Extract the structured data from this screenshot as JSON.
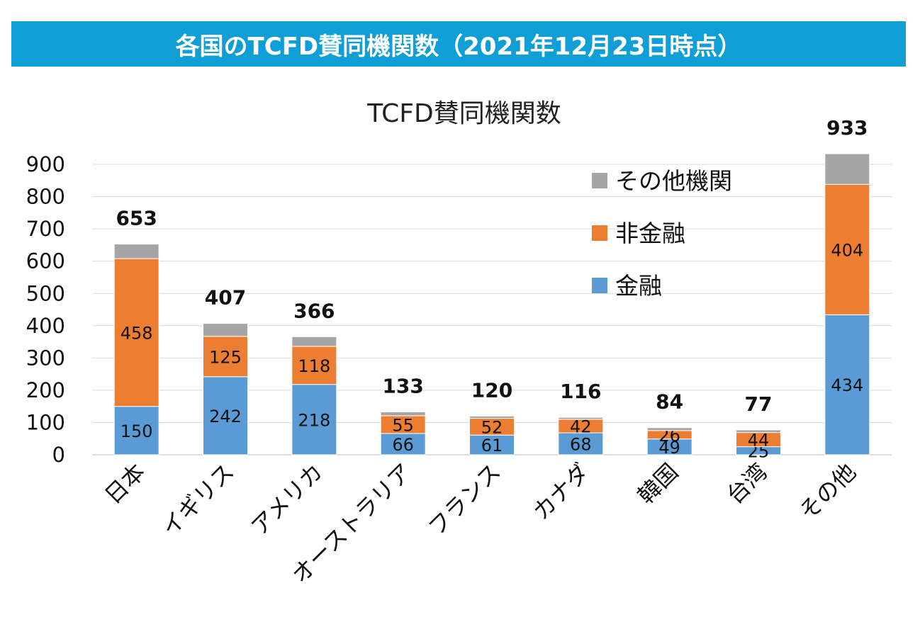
{
  "banner": {
    "title": "各国のTCFD賛同機関数（2021年12月23日時点）"
  },
  "colors": {
    "banner": "#0f9ed5",
    "kinyu": "#5b9bd5",
    "hikinyu": "#ed7d31",
    "sonota": "#a5a5a5"
  },
  "chart_data": {
    "type": "bar",
    "stacked": true,
    "title": "TCFD賛同機関数",
    "xlabel": "",
    "ylabel": "",
    "ylim": [
      0,
      933
    ],
    "yticks": [
      0,
      100,
      200,
      300,
      400,
      500,
      600,
      700,
      800,
      900
    ],
    "grid": true,
    "legend_position": "top-right",
    "categories": [
      "日本",
      "イギリス",
      "アメリカ",
      "オーストラリア",
      "フランス",
      "カナダ",
      "韓国",
      "台湾",
      "その他"
    ],
    "series": [
      {
        "name": "金融",
        "color": "#5b9bd5",
        "values": [
          150,
          242,
          218,
          66,
          61,
          68,
          49,
          25,
          434
        ]
      },
      {
        "name": "非金融",
        "color": "#ed7d31",
        "values": [
          458,
          125,
          118,
          55,
          52,
          42,
          26,
          44,
          404
        ]
      },
      {
        "name": "その他機関",
        "color": "#a5a5a5",
        "values": [
          45,
          40,
          30,
          12,
          7,
          6,
          9,
          8,
          95
        ]
      }
    ],
    "totals": [
      653,
      407,
      366,
      133,
      120,
      116,
      84,
      77,
      933
    ],
    "legend_order": [
      "その他機関",
      "非金融",
      "金融"
    ]
  }
}
